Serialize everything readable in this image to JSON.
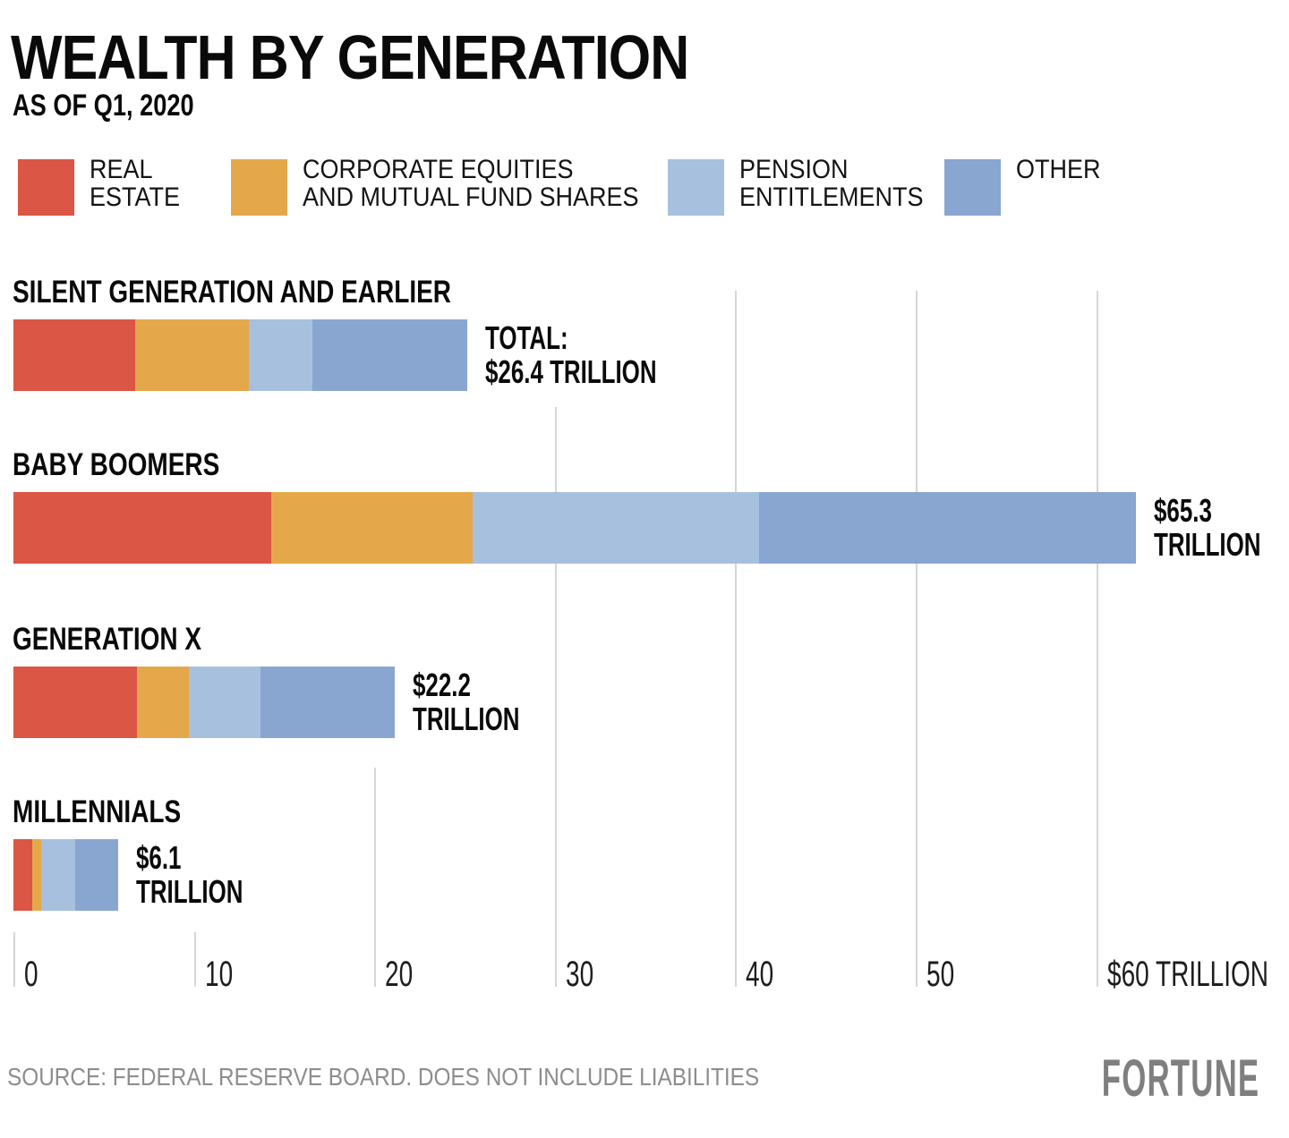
{
  "header": {
    "title": "WEALTH BY GENERATION",
    "subtitle": "AS OF Q1, 2020"
  },
  "legend": [
    {
      "lines": [
        "REAL",
        "ESTATE"
      ],
      "color": "#db5644",
      "icon": "legend-swatch-real-estate"
    },
    {
      "lines": [
        "CORPORATE EQUITIES",
        "AND MUTUAL FUND SHARES"
      ],
      "color": "#e4a84b",
      "icon": "legend-swatch-corporate-equities"
    },
    {
      "lines": [
        "PENSION",
        "ENTITLEMENTS"
      ],
      "color": "#a6c0de",
      "icon": "legend-swatch-pension-entitlements"
    },
    {
      "lines": [
        "OTHER"
      ],
      "color": "#89a6d1",
      "icon": "legend-swatch-other"
    }
  ],
  "chart_data": {
    "type": "bar",
    "orientation": "horizontal",
    "stacked": true,
    "unit": "trillions of US dollars",
    "series_names": [
      "Real Estate",
      "Corporate Equities and Mutual Fund Shares",
      "Pension Entitlements",
      "Other"
    ],
    "colors": [
      "#db5644",
      "#e4a84b",
      "#a6c0de",
      "#89a6d1"
    ],
    "grid": true,
    "rows": [
      {
        "category": "SILENT GENERATION AND EARLIER",
        "values": [
          7.1,
          6.6,
          3.7,
          9.0
        ],
        "total": 26.4,
        "label_lines": [
          "TOTAL:",
          "$26.4 TRILLION"
        ]
      },
      {
        "category": "BABY BOOMERS",
        "values": [
          15.0,
          11.7,
          16.7,
          21.9
        ],
        "total": 65.3,
        "label_lines": [
          "$65.3",
          "TRILLION"
        ]
      },
      {
        "category": "GENERATION X",
        "values": [
          7.2,
          3.0,
          4.2,
          7.8
        ],
        "total": 22.2,
        "label_lines": [
          "$22.2",
          "TRILLION"
        ]
      },
      {
        "category": "MILLENNIALS",
        "values": [
          1.1,
          0.5,
          2.0,
          2.5
        ],
        "total": 6.1,
        "label_lines": [
          "$6.1",
          "TRILLION"
        ]
      }
    ],
    "x_axis": {
      "range": [
        0,
        60
      ],
      "ticks": [
        {
          "value": 0,
          "label": "0"
        },
        {
          "value": 10,
          "label": "10"
        },
        {
          "value": 20,
          "label": "20"
        },
        {
          "value": 30,
          "label": "30"
        },
        {
          "value": 40,
          "label": "40"
        },
        {
          "value": 50,
          "label": "50"
        },
        {
          "value": 60,
          "label": "$60 TRILLION"
        }
      ]
    }
  },
  "footer": {
    "source": "SOURCE: FEDERAL RESERVE BOARD. DOES NOT INCLUDE LIABILITIES",
    "brand": "FORTUNE"
  }
}
